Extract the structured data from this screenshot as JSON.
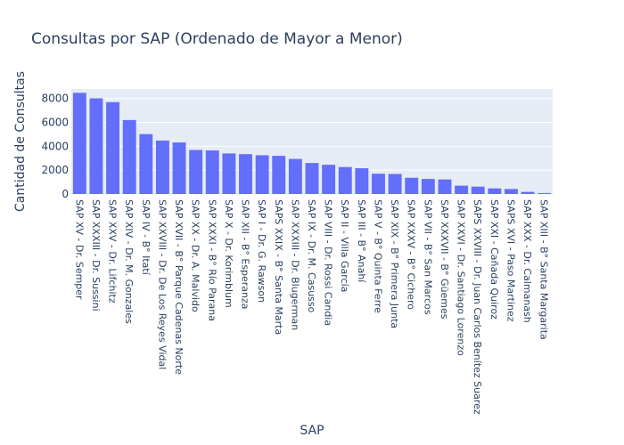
{
  "chart_data": {
    "type": "bar",
    "title": "Consultas por SAP (Ordenado de Mayor a Menor)",
    "xlabel": "SAP",
    "ylabel": "Cantidad de Consultas",
    "ylim": [
      0,
      8800
    ],
    "yticks": [
      0,
      2000,
      4000,
      6000,
      8000
    ],
    "ytick_labels": [
      "0",
      "2000",
      "4000",
      "6000",
      "8000"
    ],
    "grid": true,
    "bar_color": "#636efa",
    "plot_bg": "#e5ecf6",
    "categories": [
      "SAP XV - Dr. Semper",
      "SAP XXXIII - Dr. Sussini",
      "SAP XXV - Dr. Lifchitz",
      "SAP XIV - Dr. M. Gonzales",
      "SAP IV - B° Itatí",
      "SAP XXVIII - Dr. De Los Reyes Vidal",
      "SAP XVII - B° Parque Cadenas Norte",
      "SAP XX - Dr. A. Malvido",
      "SAP XXXI - B° Río Parana",
      "SAP X - Dr. Korimblum",
      "SAP XII - B° Esperanza",
      "SAP I - Dr. G. Rawson",
      "SAPS XXIX - B° Santa Marta",
      "SAP XXXIII - Dr. Blugerman",
      "SAP IX - Dr. M. Casusso",
      "SAP VIII - Dr. Rossi Candia",
      "SAP II - Villa García",
      "SAP III - B° Anahí",
      "SAP V - B° Quinta Ferre",
      "SAP XIX - B° Primera Junta",
      "SAP XXXV - B° Cichero",
      "SAP VII - B° San Marcos",
      "SAP XXXVII - B° Güemes",
      "SAP XXVI - Dr. Santiago Lorenzo",
      "SAPS XXVIII - Dr. Juan Carlos Benítez Suarez",
      "SAP XXI - Cañada Quiroz",
      "SAPS XVI - Paso Martinez",
      "SAP XXX - Dr. Calmanash",
      "SAP XIII - B° Santa Margarita"
    ],
    "values": [
      8480,
      8020,
      7700,
      6200,
      5020,
      4480,
      4320,
      3690,
      3650,
      3400,
      3340,
      3250,
      3200,
      2940,
      2600,
      2450,
      2260,
      2160,
      1700,
      1680,
      1360,
      1260,
      1220,
      700,
      620,
      470,
      420,
      180,
      80
    ]
  }
}
